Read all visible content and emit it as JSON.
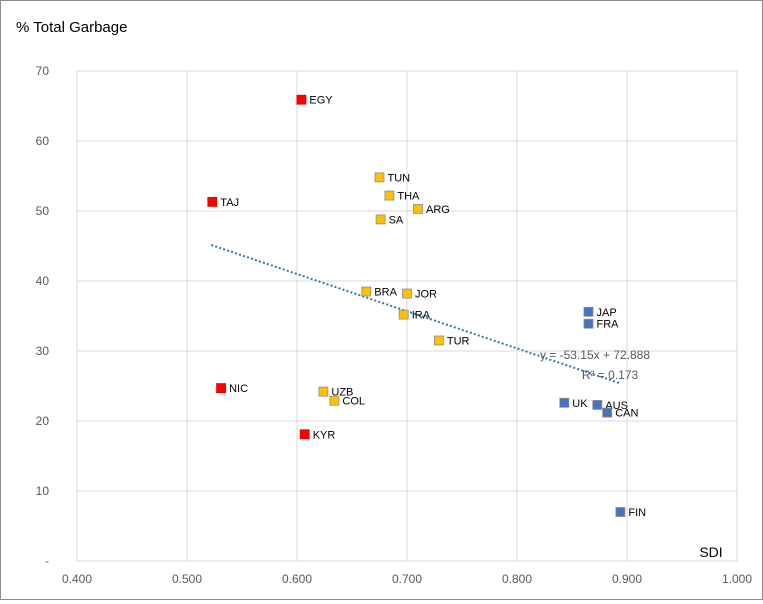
{
  "chart_data": {
    "type": "scatter",
    "ylabel": "% Total Garbage",
    "xlabel": "SDI",
    "xlim": [
      0.4,
      1.0
    ],
    "ylim": [
      0,
      70
    ],
    "x_ticks": [
      "0.400",
      "0.500",
      "0.600",
      "0.700",
      "0.800",
      "0.900",
      "1.000"
    ],
    "y_ticks": [
      "-",
      "10",
      "20",
      "30",
      "40",
      "50",
      "60",
      "70"
    ],
    "y_tick_values": [
      0,
      10,
      20,
      30,
      40,
      50,
      60,
      70
    ],
    "x_tick_values": [
      0.4,
      0.5,
      0.6,
      0.7,
      0.8,
      0.9,
      1.0
    ],
    "grid": true,
    "series": [
      {
        "name": "red",
        "color": "#ff0000",
        "points": [
          {
            "label": "EGY",
            "x": 0.604,
            "y": 65.9
          },
          {
            "label": "TAJ",
            "x": 0.523,
            "y": 51.3
          },
          {
            "label": "NIC",
            "x": 0.531,
            "y": 24.7
          },
          {
            "label": "KYR",
            "x": 0.607,
            "y": 18.1
          }
        ]
      },
      {
        "name": "orange",
        "color": "#ffc000",
        "points": [
          {
            "label": "TUN",
            "x": 0.675,
            "y": 54.8
          },
          {
            "label": "THA",
            "x": 0.684,
            "y": 52.2
          },
          {
            "label": "ARG",
            "x": 0.71,
            "y": 50.3
          },
          {
            "label": "SA",
            "x": 0.676,
            "y": 48.8
          },
          {
            "label": "BRA",
            "x": 0.663,
            "y": 38.5
          },
          {
            "label": "JOR",
            "x": 0.7,
            "y": 38.2
          },
          {
            "label": "IRA",
            "x": 0.697,
            "y": 35.2
          },
          {
            "label": "TUR",
            "x": 0.729,
            "y": 31.5
          },
          {
            "label": "UZB",
            "x": 0.624,
            "y": 24.2
          },
          {
            "label": "COL",
            "x": 0.634,
            "y": 22.9
          }
        ]
      },
      {
        "name": "blue",
        "color": "#4472c4",
        "points": [
          {
            "label": "JAP",
            "x": 0.865,
            "y": 35.6
          },
          {
            "label": "FRA",
            "x": 0.865,
            "y": 33.9
          },
          {
            "label": "UK",
            "x": 0.843,
            "y": 22.6
          },
          {
            "label": "AUS",
            "x": 0.873,
            "y": 22.3
          },
          {
            "label": "CAN",
            "x": 0.882,
            "y": 21.2
          },
          {
            "label": "FIN",
            "x": 0.894,
            "y": 7.0
          }
        ]
      }
    ],
    "trendline": {
      "slope": -53.15,
      "intercept": 72.888,
      "x_range": [
        0.522,
        0.893
      ],
      "color": "#2e75b6",
      "equation": "y = -53.15x + 72.888",
      "r_squared": "R² = 0.173"
    }
  }
}
